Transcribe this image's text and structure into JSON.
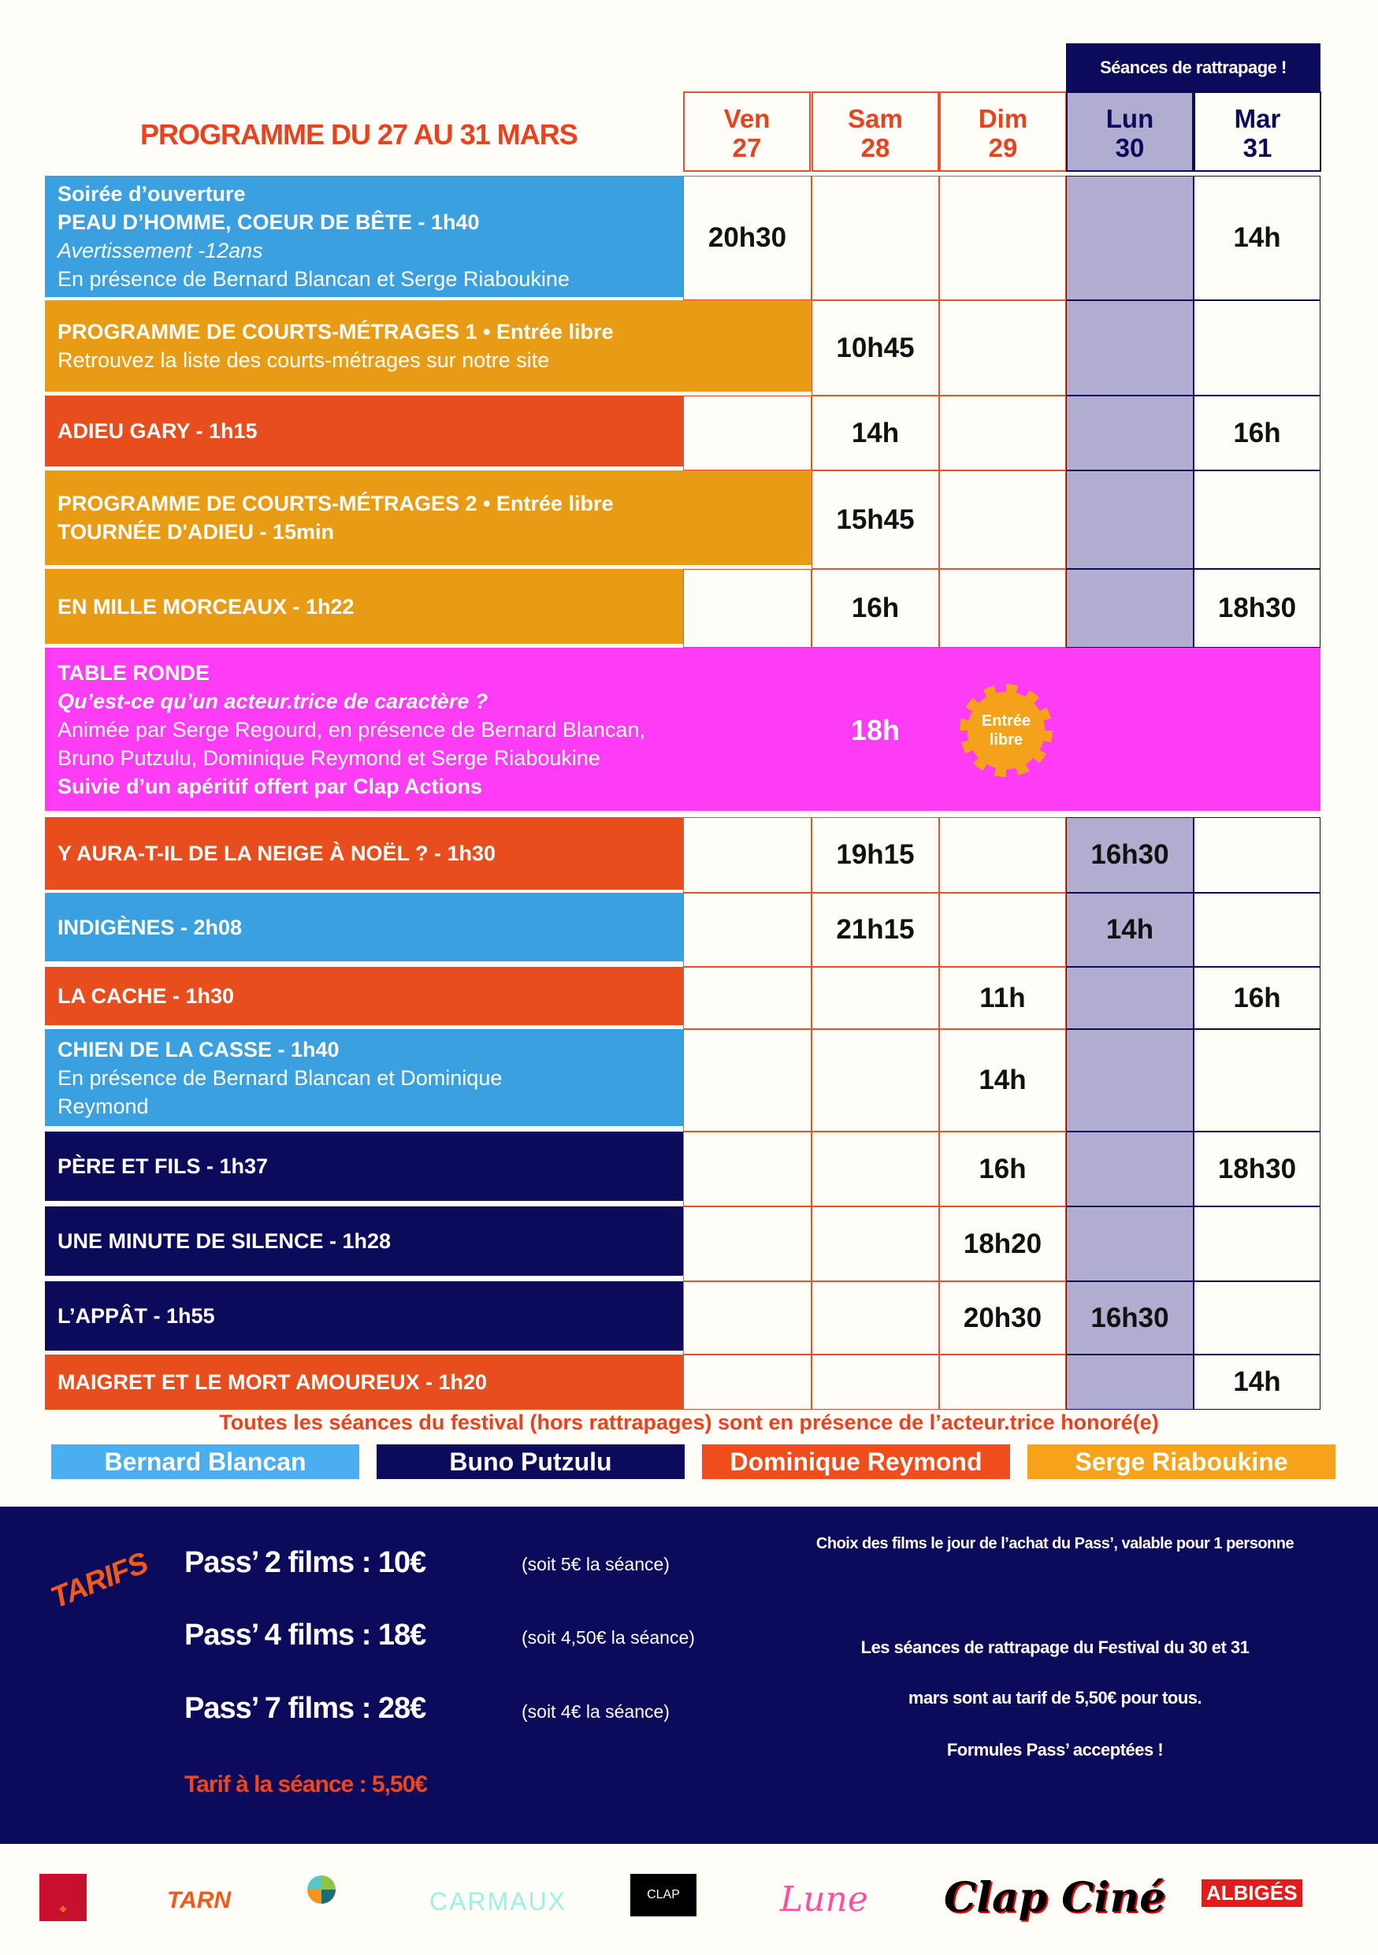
{
  "header": {
    "title": "PROGRAMME DU 27 AU 31 MARS",
    "rattrapage": "Séances de rattrapage !",
    "days": [
      {
        "name": "Ven",
        "num": "27"
      },
      {
        "name": "Sam",
        "num": "28"
      },
      {
        "name": "Dim",
        "num": "29"
      },
      {
        "name": "Lun",
        "num": "30"
      },
      {
        "name": "Mar",
        "num": "31"
      }
    ]
  },
  "colors": {
    "blue": "#3aa0e0",
    "gold": "#e89c16",
    "red": "#e84d1e",
    "navy": "#0c0a5a",
    "magenta": "#ff3cf5",
    "catchup": "#b1add0",
    "title": "#e8431e"
  },
  "rows": [
    {
      "color": "blue",
      "lines": [
        {
          "t": "Soirée d’ouverture",
          "s": "b"
        },
        {
          "t": "PEAU D’HOMME, COEUR DE BÊTE - 1h40",
          "s": "b"
        },
        {
          "t": "Avertissement -12ans",
          "s": "i"
        },
        {
          "t": "En présence de Bernard Blancan et Serge Riaboukine",
          "s": "r"
        }
      ],
      "times": [
        "20h30",
        "",
        "",
        "",
        "14h"
      ]
    },
    {
      "color": "gold",
      "wide": true,
      "lines": [
        {
          "t": "PROGRAMME DE COURTS-MÉTRAGES 1 • Entrée libre",
          "s": "b"
        },
        {
          "t": "Retrouvez la liste des courts-métrages sur notre site",
          "s": "r"
        }
      ],
      "times": [
        "",
        "10h45",
        "",
        "",
        ""
      ]
    },
    {
      "color": "red",
      "lines": [
        {
          "t": "ADIEU GARY - 1h15",
          "s": "b"
        }
      ],
      "times": [
        "",
        "14h",
        "",
        "",
        "16h"
      ]
    },
    {
      "color": "gold",
      "wide": true,
      "lines": [
        {
          "t": "PROGRAMME DE COURTS-MÉTRAGES 2 • Entrée libre",
          "s": "b"
        },
        {
          "t": "TOURNÉE D'ADIEU - 15min",
          "s": "b"
        }
      ],
      "times": [
        "",
        "15h45",
        "",
        "",
        ""
      ]
    },
    {
      "color": "gold",
      "lines": [
        {
          "t": "EN MILLE MORCEAUX - 1h22",
          "s": "b"
        }
      ],
      "times": [
        "",
        "16h",
        "",
        "",
        "18h30"
      ]
    },
    {
      "color": "magenta",
      "full": true,
      "lines": [
        {
          "t": "TABLE RONDE",
          "s": "b"
        },
        {
          "t": "Qu’est-ce qu’un acteur.trice de caractère ?",
          "s": "bi"
        },
        {
          "t": "Animée par Serge Regourd, en présence de Bernard Blancan,",
          "s": "r"
        },
        {
          "t": "Bruno Putzulu, Dominique Reymond et Serge Riaboukine",
          "s": "r"
        },
        {
          "t": "Suivie d’un apéritif offert par Clap Actions",
          "s": "b"
        }
      ],
      "time": "18h",
      "badge": "Entrée libre"
    },
    {
      "color": "red",
      "lines": [
        {
          "t": "Y AURA-T-IL DE LA NEIGE À NOËL ? - 1h30",
          "s": "b"
        }
      ],
      "times": [
        "",
        "19h15",
        "",
        "16h30",
        ""
      ]
    },
    {
      "color": "blue",
      "lines": [
        {
          "t": "INDIGÈNES - 2h08",
          "s": "b"
        }
      ],
      "times": [
        "",
        "21h15",
        "",
        "14h",
        ""
      ]
    },
    {
      "color": "red",
      "lines": [
        {
          "t": "LA CACHE - 1h30",
          "s": "b"
        }
      ],
      "times": [
        "",
        "",
        "11h",
        "",
        "16h"
      ]
    },
    {
      "color": "blue",
      "lines": [
        {
          "t": "CHIEN DE LA CASSE - 1h40",
          "s": "b"
        },
        {
          "t": "En présence de Bernard Blancan et Dominique",
          "s": "r"
        },
        {
          "t": "Reymond",
          "s": "r"
        }
      ],
      "times": [
        "",
        "",
        "14h",
        "",
        ""
      ]
    },
    {
      "color": "navy",
      "lines": [
        {
          "t": "PÈRE ET FILS - 1h37",
          "s": "b"
        }
      ],
      "times": [
        "",
        "",
        "16h",
        "",
        "18h30"
      ]
    },
    {
      "color": "navy",
      "lines": [
        {
          "t": "UNE MINUTE DE SILENCE - 1h28",
          "s": "b"
        }
      ],
      "times": [
        "",
        "",
        "18h20",
        "",
        ""
      ]
    },
    {
      "color": "navy",
      "lines": [
        {
          "t": "L’APPÂT - 1h55",
          "s": "b"
        }
      ],
      "times": [
        "",
        "",
        "20h30",
        "16h30",
        ""
      ]
    },
    {
      "color": "red",
      "lines": [
        {
          "t": "MAIGRET ET LE MORT AMOUREUX - 1h20",
          "s": "b"
        }
      ],
      "times": [
        "",
        "",
        "",
        "",
        "14h"
      ]
    }
  ],
  "note": "Toutes les séances du festival (hors rattrapages) sont en présence de l’acteur.trice honoré(e)",
  "legend": [
    {
      "name": "Bernard Blancan",
      "color": "#4aaef0"
    },
    {
      "name": "Buno Putzulu",
      "color": "#0c0a5a"
    },
    {
      "name": "Dominique Reymond",
      "color": "#ef4e1c"
    },
    {
      "name": "Serge Riaboukine",
      "color": "#f7a21b"
    }
  ],
  "tarifs": {
    "heading": "TARIFS",
    "passes": [
      {
        "label": "Pass’ 2 films : 10€",
        "detail": "(soit 5€ la séance)"
      },
      {
        "label": "Pass’ 4 films : 18€",
        "detail": "(soit 4,50€ la séance)"
      },
      {
        "label": "Pass’ 7 films : 28€",
        "detail": "(soit 4€ la séance)"
      }
    ],
    "single": "Tarif à la séance : 5,50€",
    "choice": "Choix des films le jour de l’achat du Pass’, valable pour 1 personne",
    "catchup": [
      "Les séances de rattrapage du Festival du 30 et 31",
      "mars sont au tarif de 5,50€ pour tous.",
      "Formules Pass’ acceptées !"
    ]
  },
  "logos": [
    "La Région Occitanie",
    "TARN LE DÉPARTEMENT",
    "Carmausin Ségala",
    "CARMAUX",
    "CLAP ACTIONS",
    "Lune Cinémas",
    "Clap Ciné Carmaux",
    "Radio ALBIGÉS"
  ]
}
